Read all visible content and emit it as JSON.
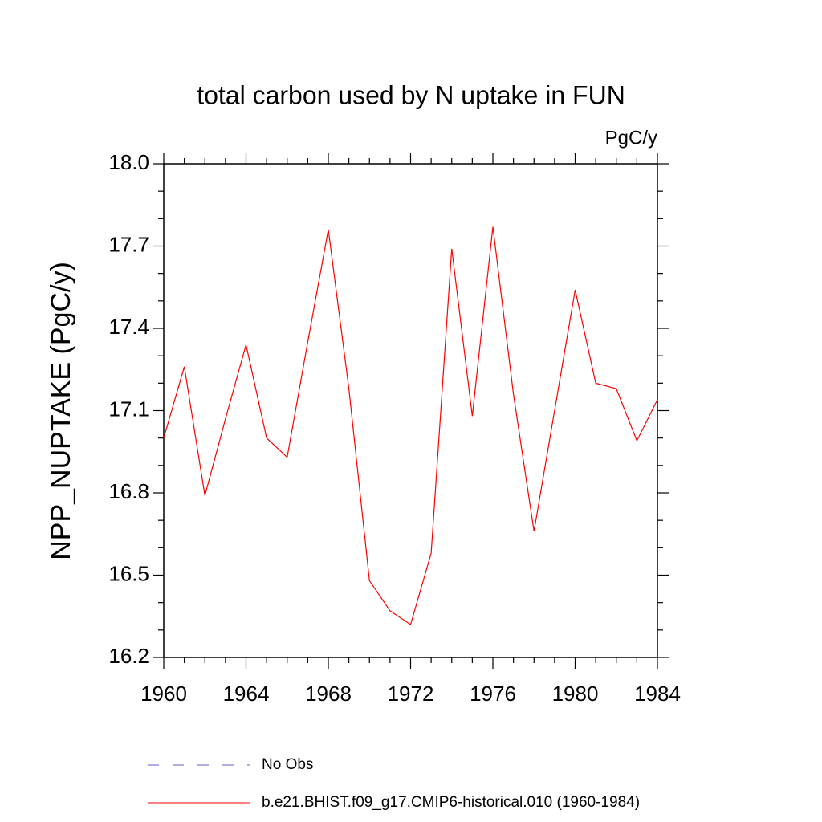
{
  "chart_data": {
    "type": "line",
    "title": "total carbon used by N uptake in FUN",
    "units": "PgC/y",
    "ylabel": "NPP_NUPTAKE  (PgC/y)",
    "x": [
      1960,
      1961,
      1962,
      1963,
      1964,
      1965,
      1966,
      1967,
      1968,
      1969,
      1970,
      1971,
      1972,
      1973,
      1974,
      1975,
      1976,
      1977,
      1978,
      1979,
      1980,
      1981,
      1982,
      1983,
      1984
    ],
    "series": [
      {
        "name": "b.e21.BHIST.f09_g17.CMIP6-historical.010 (1960-1984)",
        "color": "#ff0000",
        "values": [
          17.0,
          17.26,
          16.79,
          17.07,
          17.34,
          17.0,
          16.93,
          17.35,
          17.76,
          17.18,
          16.48,
          16.37,
          16.32,
          16.58,
          17.69,
          17.08,
          17.77,
          17.16,
          16.66,
          17.1,
          17.54,
          17.2,
          17.18,
          16.99,
          17.14
        ]
      }
    ],
    "legend": [
      {
        "name": "No Obs",
        "color": "#6a5acd",
        "dash": true
      }
    ],
    "xlim": [
      1960,
      1984
    ],
    "xticks": [
      1960,
      1964,
      1968,
      1972,
      1976,
      1980,
      1984
    ],
    "xminorticks": [
      1961,
      1962,
      1963,
      1965,
      1966,
      1967,
      1969,
      1970,
      1971,
      1973,
      1974,
      1975,
      1977,
      1978,
      1979,
      1981,
      1982,
      1983
    ],
    "ylim": [
      16.2,
      18.0
    ],
    "yticks": [
      16.2,
      16.5,
      16.8,
      17.1,
      17.4,
      17.7,
      {
        "value": 18.0,
        "label": "18.0"
      }
    ],
    "yminorticks": [
      16.3,
      16.4,
      16.6,
      16.7,
      16.9,
      17.0,
      17.2,
      17.3,
      17.5,
      17.6,
      17.8,
      17.9
    ]
  }
}
